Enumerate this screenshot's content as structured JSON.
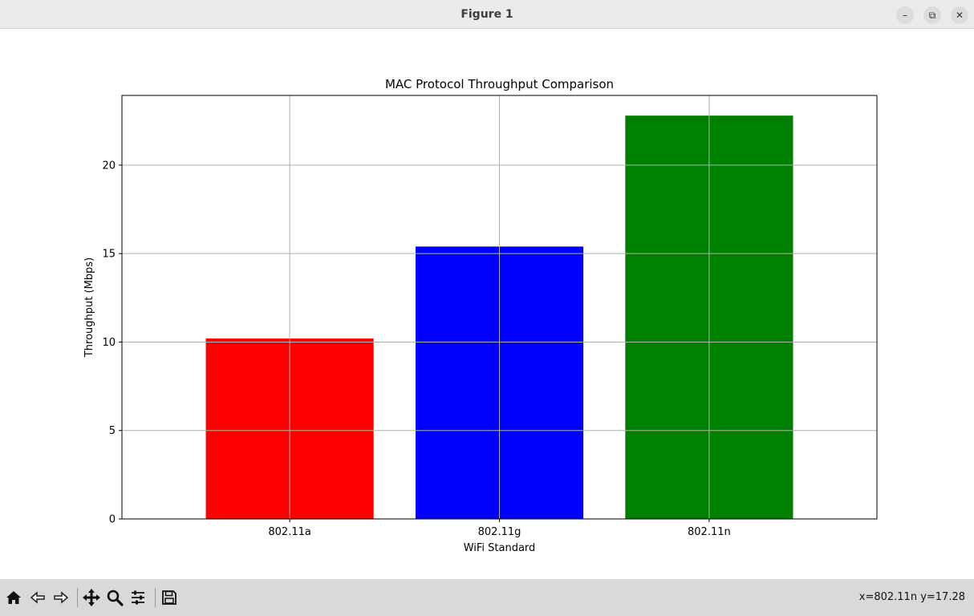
{
  "window": {
    "title": "Figure 1",
    "controls": {
      "minimize": "–",
      "maximize": "⧉",
      "close": "✕"
    }
  },
  "toolbar": {
    "tools": [
      "home-icon",
      "back-arrow-icon",
      "forward-arrow-icon",
      "pan-icon",
      "zoom-icon",
      "configure-subplots-icon",
      "save-icon"
    ],
    "coords": "x=802.11n y=17.28"
  },
  "chart_data": {
    "type": "bar",
    "title": "MAC Protocol Throughput Comparison",
    "xlabel": "WiFi Standard",
    "ylabel": "Throughput (Mbps)",
    "categories": [
      "802.11a",
      "802.11g",
      "802.11n"
    ],
    "values": [
      10.2,
      15.4,
      22.8
    ],
    "colors": [
      "#ff0000",
      "#0000ff",
      "#008000"
    ],
    "ylim": [
      0,
      23.94
    ],
    "yticks": [
      0,
      5,
      10,
      15,
      20
    ],
    "grid": true
  }
}
